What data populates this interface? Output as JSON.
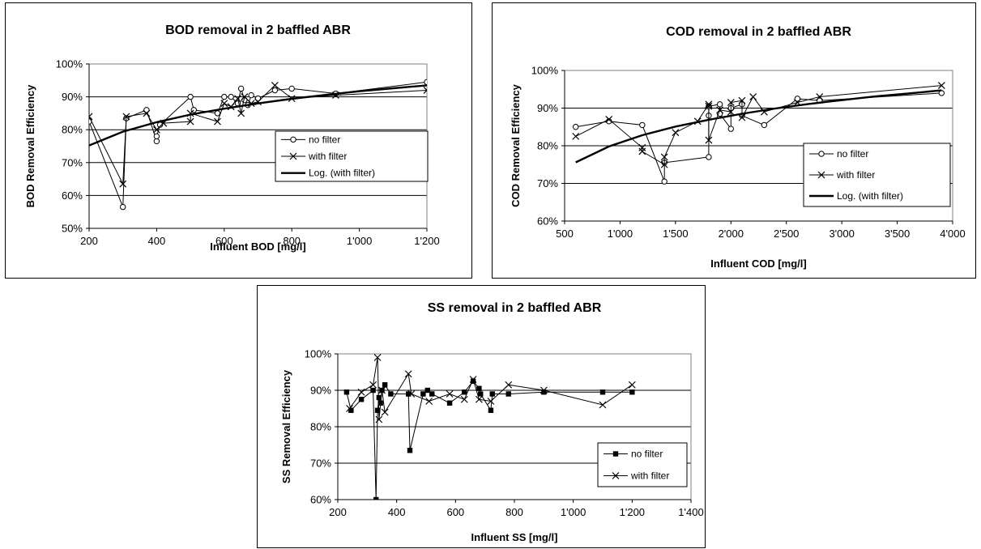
{
  "chart_data": [
    {
      "type": "line",
      "title": "BOD removal in 2 baffled ABR",
      "xlabel": "Influent BOD [mg/l]",
      "ylabel": "BOD Removal Efficiency",
      "xlim": [
        200,
        1200
      ],
      "ylim": [
        0.5,
        1.0
      ],
      "xticks": [
        200,
        400,
        600,
        800,
        1000,
        1200
      ],
      "xtick_labels": [
        "200",
        "400",
        "600",
        "800",
        "1'000",
        "1'200"
      ],
      "yticks": [
        0.5,
        0.6,
        0.7,
        0.8,
        0.9,
        1.0
      ],
      "ytick_labels": [
        "50%",
        "60%",
        "70%",
        "80%",
        "90%",
        "100%"
      ],
      "grid": "horizontal",
      "legend_position": "right",
      "series": [
        {
          "name": "no filter",
          "marker": "circle",
          "x": [
            200,
            300,
            310,
            370,
            400,
            400,
            410,
            500,
            510,
            580,
            600,
            620,
            640,
            650,
            660,
            670,
            680,
            700,
            750,
            800,
            930,
            1200
          ],
          "y": [
            0.825,
            0.565,
            0.835,
            0.86,
            0.765,
            0.78,
            0.815,
            0.9,
            0.86,
            0.85,
            0.9,
            0.9,
            0.88,
            0.925,
            0.89,
            0.875,
            0.905,
            0.895,
            0.92,
            0.925,
            0.91,
            0.945
          ]
        },
        {
          "name": "with filter",
          "marker": "x",
          "x": [
            200,
            300,
            310,
            370,
            400,
            420,
            500,
            500,
            580,
            600,
            620,
            640,
            650,
            660,
            680,
            700,
            750,
            800,
            930,
            1200
          ],
          "y": [
            0.84,
            0.635,
            0.84,
            0.85,
            0.8,
            0.82,
            0.825,
            0.85,
            0.825,
            0.88,
            0.87,
            0.895,
            0.85,
            0.9,
            0.88,
            0.885,
            0.935,
            0.895,
            0.905,
            0.92
          ]
        },
        {
          "name": "Log. (with filter)",
          "marker": "none",
          "trend": "log",
          "x": [
            200,
            300,
            400,
            500,
            600,
            700,
            800,
            900,
            1000,
            1100,
            1200
          ],
          "y": [
            0.752,
            0.794,
            0.823,
            0.846,
            0.864,
            0.88,
            0.894,
            0.906,
            0.917,
            0.926,
            0.935
          ]
        }
      ]
    },
    {
      "type": "line",
      "title": "COD removal in 2 baffled ABR",
      "xlabel": "Influent COD [mg/l]",
      "ylabel": "COD Removal Efficiency",
      "xlim": [
        500,
        4000
      ],
      "ylim": [
        0.6,
        1.0
      ],
      "xticks": [
        500,
        1000,
        1500,
        2000,
        2500,
        3000,
        3500,
        4000
      ],
      "xtick_labels": [
        "500",
        "1'000",
        "1'500",
        "2'000",
        "2'500",
        "3'000",
        "3'500",
        "4'000"
      ],
      "yticks": [
        0.6,
        0.7,
        0.8,
        0.9,
        1.0
      ],
      "ytick_labels": [
        "60%",
        "70%",
        "80%",
        "90%",
        "100%"
      ],
      "grid": "horizontal",
      "legend_position": "right",
      "series": [
        {
          "name": "no filter",
          "marker": "circle",
          "x": [
            600,
            900,
            1200,
            1400,
            1400,
            1800,
            1800,
            1800,
            1900,
            1900,
            2000,
            2000,
            2100,
            2100,
            2300,
            2600,
            2800,
            3900
          ],
          "y": [
            0.85,
            0.865,
            0.855,
            0.705,
            0.755,
            0.77,
            0.88,
            0.905,
            0.91,
            0.885,
            0.845,
            0.9,
            0.91,
            0.88,
            0.855,
            0.925,
            0.92,
            0.94
          ]
        },
        {
          "name": "with filter",
          "marker": "x",
          "x": [
            600,
            900,
            1200,
            1200,
            1400,
            1400,
            1500,
            1700,
            1800,
            1800,
            1800,
            1900,
            2000,
            2000,
            2100,
            2100,
            2200,
            2300,
            2600,
            2800,
            3900
          ],
          "y": [
            0.825,
            0.87,
            0.795,
            0.785,
            0.75,
            0.77,
            0.835,
            0.865,
            0.91,
            0.905,
            0.815,
            0.895,
            0.89,
            0.915,
            0.92,
            0.875,
            0.93,
            0.89,
            0.915,
            0.93,
            0.96
          ]
        },
        {
          "name": "Log. (with filter)",
          "marker": "none",
          "trend": "log",
          "x": [
            600,
            900,
            1200,
            1500,
            1800,
            2100,
            2400,
            2700,
            3000,
            3300,
            3600,
            3900
          ],
          "y": [
            0.756,
            0.798,
            0.828,
            0.851,
            0.869,
            0.885,
            0.899,
            0.911,
            0.921,
            0.931,
            0.939,
            0.947
          ]
        }
      ]
    },
    {
      "type": "line",
      "title": "SS removal in 2 baffled ABR",
      "xlabel": "Influent SS [mg/l]",
      "ylabel": "SS Removal Efficiency",
      "xlim": [
        200,
        1400
      ],
      "ylim": [
        0.6,
        1.0
      ],
      "xticks": [
        200,
        400,
        600,
        800,
        1000,
        1200,
        1400
      ],
      "xtick_labels": [
        "200",
        "400",
        "600",
        "800",
        "1'000",
        "1'200",
        "1'400"
      ],
      "yticks": [
        0.6,
        0.7,
        0.8,
        0.9,
        1.0
      ],
      "ytick_labels": [
        "60%",
        "70%",
        "80%",
        "90%",
        "100%"
      ],
      "grid": "horizontal",
      "legend_position": "right",
      "series": [
        {
          "name": "no filter",
          "marker": "square",
          "x": [
            230,
            245,
            280,
            320,
            330,
            335,
            340,
            345,
            350,
            360,
            380,
            440,
            445,
            490,
            505,
            520,
            580,
            630,
            660,
            680,
            685,
            720,
            725,
            780,
            900,
            1100,
            1200
          ],
          "y": [
            0.895,
            0.845,
            0.875,
            0.9,
            0.6,
            0.845,
            0.88,
            0.865,
            0.9,
            0.915,
            0.89,
            0.89,
            0.735,
            0.89,
            0.9,
            0.89,
            0.865,
            0.895,
            0.925,
            0.905,
            0.89,
            0.845,
            0.89,
            0.89,
            0.895,
            0.895,
            0.895
          ]
        },
        {
          "name": "with filter",
          "marker": "x",
          "x": [
            240,
            280,
            320,
            335,
            340,
            350,
            360,
            440,
            450,
            510,
            580,
            630,
            660,
            680,
            720,
            780,
            900,
            1100,
            1200
          ],
          "y": [
            0.85,
            0.895,
            0.915,
            0.99,
            0.82,
            0.9,
            0.84,
            0.945,
            0.89,
            0.87,
            0.89,
            0.875,
            0.93,
            0.875,
            0.87,
            0.915,
            0.9,
            0.86,
            0.915
          ]
        }
      ]
    }
  ]
}
